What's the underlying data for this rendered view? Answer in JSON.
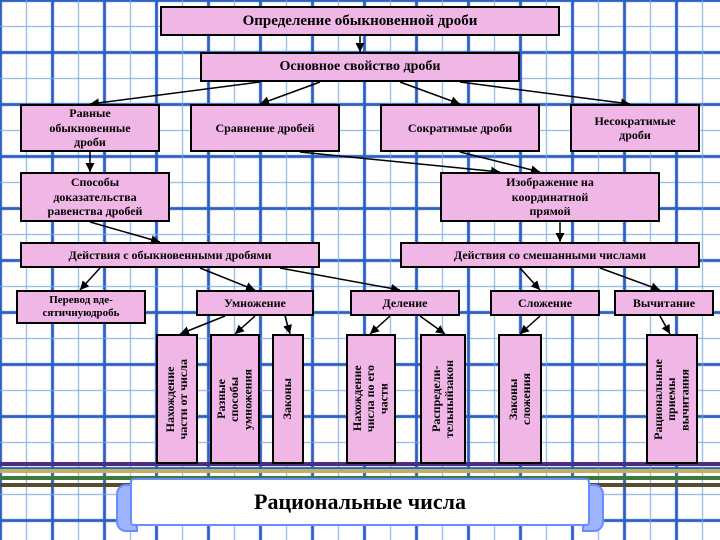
{
  "type": "flowchart",
  "grid": {
    "cell_size": 26,
    "minor_color": "#7aa8e6",
    "minor_width": 1,
    "major_color": "#2b5fc4",
    "major_width": 3,
    "major_every": 2,
    "background_color": "#ffffff"
  },
  "node_color": "#f0b6e6",
  "node_border": "#000000",
  "arrow_color": "#000000",
  "banner": {
    "text": "Рациональные числа",
    "bg": "#ffffff",
    "scroll_color": "#9db4ff",
    "border": "#6b8cff",
    "fontsize": 22
  },
  "bottom_stripes": [
    "#4b2e83",
    "#c0b060",
    "#3a7a3a",
    "#5b4a2e"
  ],
  "nodes": {
    "title": {
      "label": "Определение обыкновенной дроби"
    },
    "main_prop": {
      "label": "Основное свойство дроби"
    },
    "equal": {
      "label": "Равные\nобыкновенные\nдроби"
    },
    "compare": {
      "label": "Сравнение дробей"
    },
    "reducible": {
      "label": "Сократимые дроби"
    },
    "irreducible": {
      "label": "Несократимые\nдроби"
    },
    "proofs": {
      "label": "Способы\nдоказательства\nравенства дробей"
    },
    "numberline": {
      "label": "Изображение на\nкоординатной\nпрямой"
    },
    "ops_frac": {
      "label": "Действия с обыкновенными дробями"
    },
    "ops_mixed": {
      "label": "Действия со смешанными числами"
    },
    "to_decimal": {
      "label": "Перевод вде-\nсятичнуюдробь"
    },
    "mult": {
      "label": "Умножение"
    },
    "div": {
      "label": "Деление"
    },
    "add": {
      "label": "Сложение"
    },
    "sub": {
      "label": "Вычитание"
    },
    "v_part_from": {
      "label": "Нахождение\nчасти от числа"
    },
    "v_mult_ways": {
      "label": "Разные\nспособы\nумножения"
    },
    "v_laws": {
      "label": "Законы"
    },
    "v_find_num": {
      "label": "Нахождение\nчисла по его\nчасти"
    },
    "v_distrib": {
      "label": "Распредели-\nтельныйзакон"
    },
    "v_add_laws": {
      "label": "Законы\nсложения"
    },
    "v_sub_tr": {
      "label": "Рациональные\nприемы\nвычитания"
    }
  }
}
